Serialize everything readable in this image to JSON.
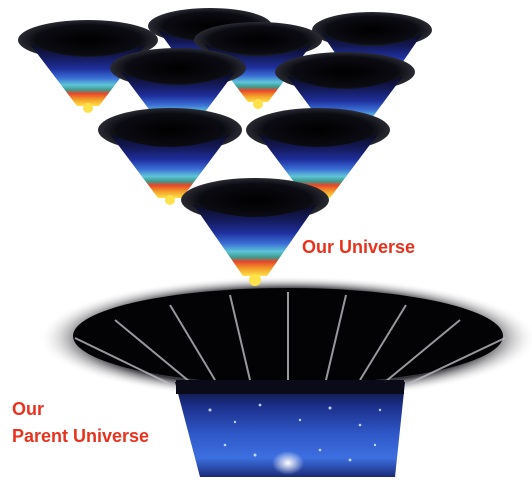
{
  "labels": {
    "our_universe": "Our Universe",
    "parent_line1": "Our",
    "parent_line2": "Parent Universe"
  },
  "colors": {
    "label": "#e8321e",
    "band_top": "#0a0a1e",
    "band_deep_blue": "#1f2f9c",
    "band_blue": "#3b6fd6",
    "band_cyan": "#5ec4d8",
    "band_teal": "#3f9a8c",
    "band_red": "#e8452a",
    "band_orange": "#f3a029",
    "band_yellow": "#ffe14a",
    "mouth": "#050508"
  }
}
